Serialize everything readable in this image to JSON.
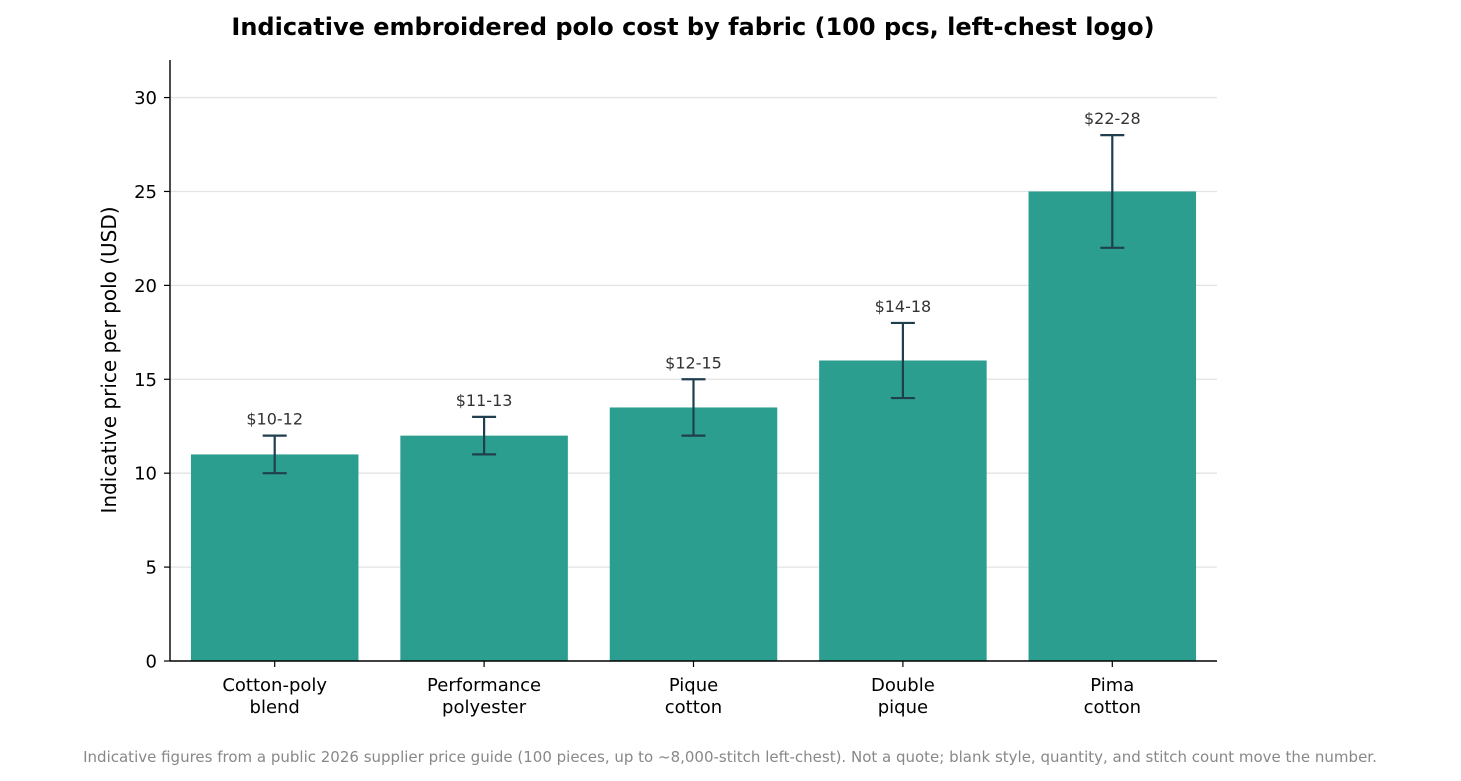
{
  "chart_data": {
    "type": "bar",
    "title": "Indicative embroidered polo cost by fabric (100 pcs, left-chest logo)",
    "xlabel": "",
    "ylabel": "Indicative price per polo (USD)",
    "ylim": [
      0,
      32
    ],
    "yticks": [
      0,
      5,
      10,
      15,
      20,
      25,
      30
    ],
    "grid": "horizontal",
    "categories": [
      [
        "Cotton-poly",
        "blend"
      ],
      [
        "Performance",
        "polyester"
      ],
      [
        "Pique",
        "cotton"
      ],
      [
        "Double",
        "pique"
      ],
      [
        "Pima",
        "cotton"
      ]
    ],
    "values": [
      11,
      12,
      13.5,
      16,
      25
    ],
    "error_low": [
      10,
      11,
      12,
      14,
      22
    ],
    "error_high": [
      12,
      13,
      15,
      18,
      28
    ],
    "data_labels": [
      "$10-12",
      "$11-13",
      "$12-15",
      "$14-18",
      "$22-28"
    ],
    "colors": {
      "bar": "#2c9e8f",
      "error_bar": "#1f3f4f",
      "grid": "#e3e3e3",
      "axis": "#000000"
    }
  },
  "footnote": "Indicative figures from a public 2026 supplier price guide (100 pieces, up to ~8,000-stitch left-chest). Not a quote; blank style, quantity, and stitch count move the number."
}
